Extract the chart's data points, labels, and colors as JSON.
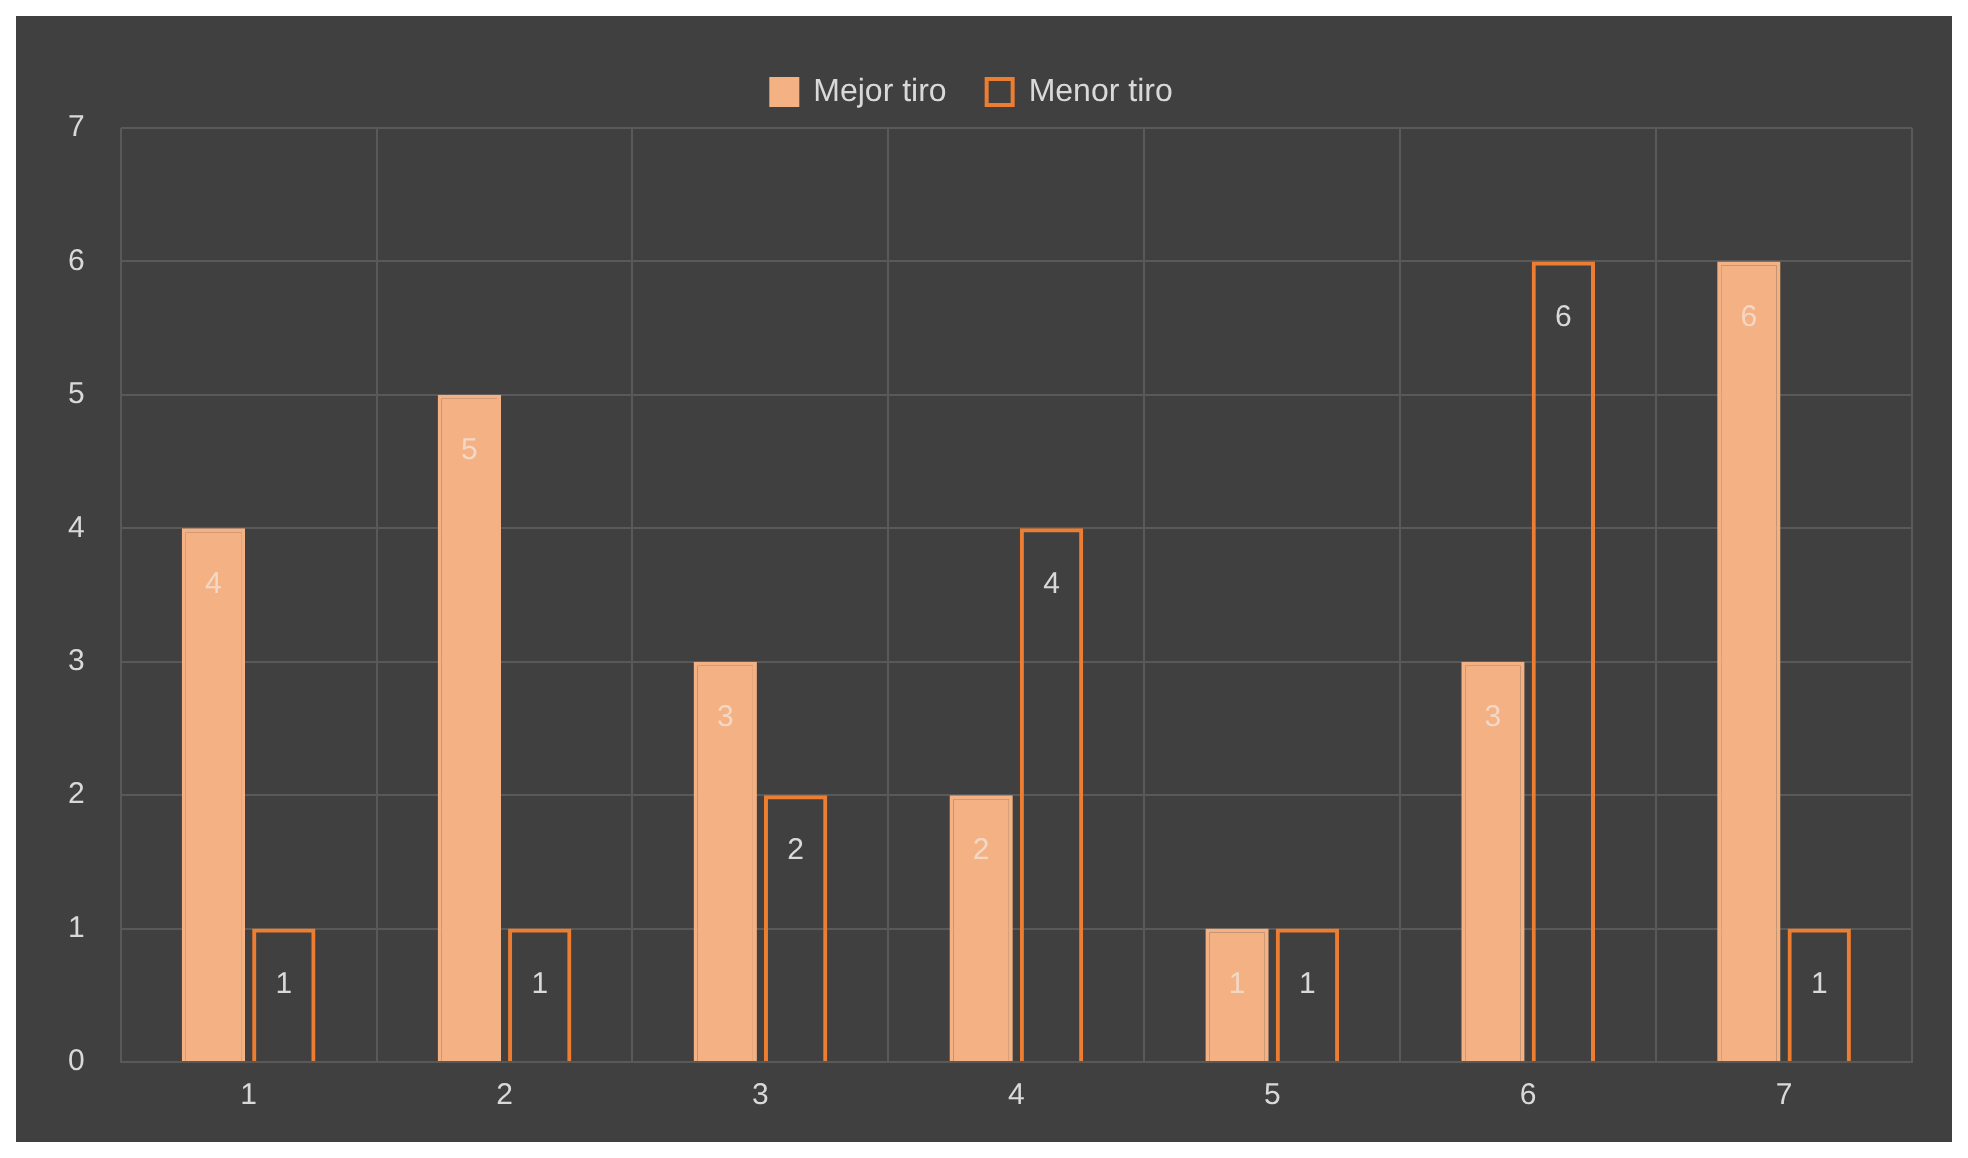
{
  "chart_data": {
    "type": "bar",
    "categories": [
      "1",
      "2",
      "3",
      "4",
      "5",
      "6",
      "7"
    ],
    "series": [
      {
        "name": "Mejor tiro",
        "color": "#f4b183",
        "values": [
          4,
          5,
          3,
          2,
          1,
          3,
          6
        ]
      },
      {
        "name": "Menor tiro",
        "color": "#ed7d31",
        "values": [
          1,
          1,
          2,
          4,
          1,
          6,
          1
        ]
      }
    ],
    "ylim": [
      0,
      7
    ],
    "yticks": [
      0,
      1,
      2,
      3,
      4,
      5,
      6,
      7
    ],
    "grid": true,
    "legend": "top",
    "data_labels": true
  }
}
